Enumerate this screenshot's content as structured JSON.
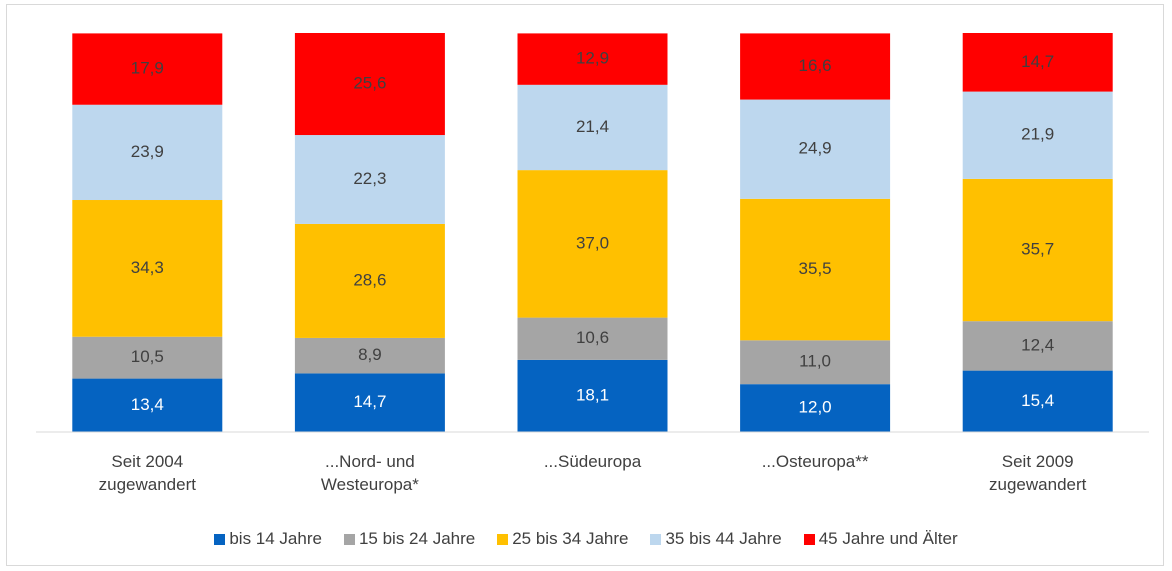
{
  "chart_data": {
    "type": "stacked_bar",
    "categories": [
      "Seit 2004 zugewandert",
      "...Nord- und Westeuropa*",
      "...Südeuropa",
      "...Osteuropa**",
      "Seit 2009 zugewandert"
    ],
    "series": [
      {
        "name": "bis 14 Jahre",
        "color": "#0563c1",
        "values": [
          13.4,
          14.7,
          18.1,
          12.0,
          15.4
        ],
        "value_labels": [
          "13,4",
          "14,7",
          "18,1",
          "12,0",
          "15,4"
        ]
      },
      {
        "name": "15 bis 24 Jahre",
        "color": "#a5a5a5",
        "values": [
          10.5,
          8.9,
          10.6,
          11.0,
          12.4
        ],
        "value_labels": [
          "10,5",
          "8,9",
          "10,6",
          "11,0",
          "12,4"
        ]
      },
      {
        "name": "25 bis 34 Jahre",
        "color": "#ffc000",
        "values": [
          34.3,
          28.6,
          37.0,
          35.5,
          35.7
        ],
        "value_labels": [
          "34,3",
          "28,6",
          "37,0",
          "35,5",
          "35,7"
        ]
      },
      {
        "name": "35 bis 44 Jahre",
        "color": "#bdd7ee",
        "values": [
          23.9,
          22.3,
          21.4,
          24.9,
          21.9
        ],
        "value_labels": [
          "23,9",
          "22,3",
          "21,4",
          "24,9",
          "21,9"
        ]
      },
      {
        "name": "45 Jahre und Älter",
        "color": "#ff0000",
        "values": [
          17.9,
          25.6,
          12.9,
          16.6,
          14.7
        ],
        "value_labels": [
          "17,9",
          "25,6",
          "12,9",
          "16,6",
          "14,7"
        ]
      }
    ]
  }
}
